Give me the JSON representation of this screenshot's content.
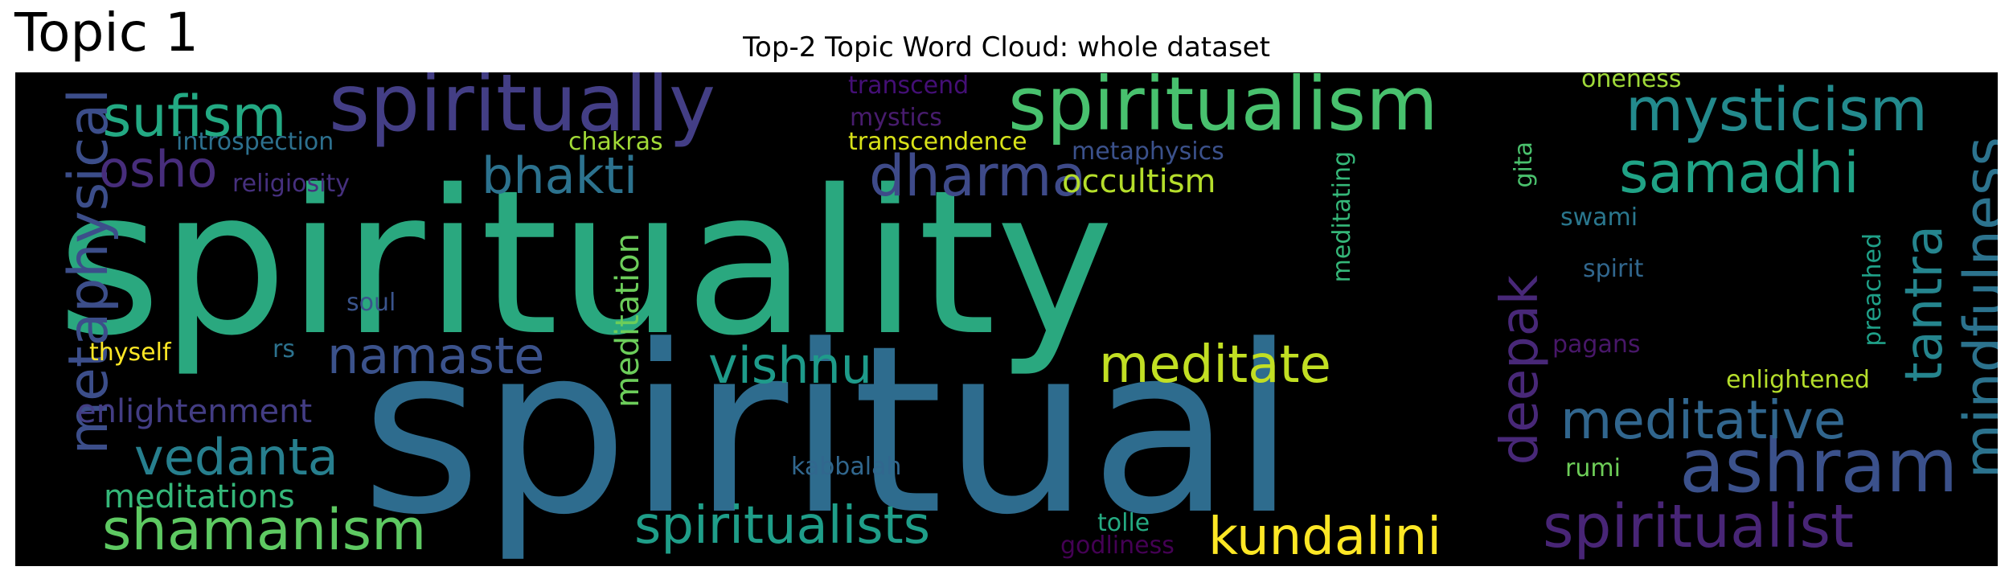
{
  "figure": {
    "topic_label": "Topic 1",
    "title": "Top-2 Topic Word Cloud: whole dataset",
    "background": "#000000"
  },
  "words": [
    {
      "text": "spirituality",
      "color": "#2aa87f"
    },
    {
      "text": "spiritual",
      "color": "#2e6c8e"
    },
    {
      "text": "spiritually",
      "color": "#433e85"
    },
    {
      "text": "spiritualism",
      "color": "#48c16e"
    },
    {
      "text": "mysticism",
      "color": "#238a8d"
    },
    {
      "text": "sufism",
      "color": "#23a983"
    },
    {
      "text": "metaphysical",
      "color": "#3c4e8a"
    },
    {
      "text": "osho",
      "color": "#472d7b"
    },
    {
      "text": "bhakti",
      "color": "#2c728e"
    },
    {
      "text": "dharma",
      "color": "#3e4a89"
    },
    {
      "text": "samadhi",
      "color": "#20a386"
    },
    {
      "text": "mindfulness",
      "color": "#2c738e"
    },
    {
      "text": "tantra",
      "color": "#25858e"
    },
    {
      "text": "ashram",
      "color": "#3b518b"
    },
    {
      "text": "spiritualist",
      "color": "#482576"
    },
    {
      "text": "meditative",
      "color": "#31668e"
    },
    {
      "text": "deepak",
      "color": "#482878"
    },
    {
      "text": "kundalini",
      "color": "#fde725"
    },
    {
      "text": "spiritualists",
      "color": "#1f9e89"
    },
    {
      "text": "shamanism",
      "color": "#5ec962"
    },
    {
      "text": "vedanta",
      "color": "#277f8e"
    },
    {
      "text": "namaste",
      "color": "#3b528b"
    },
    {
      "text": "vishnu",
      "color": "#1e9b8a"
    },
    {
      "text": "meditate",
      "color": "#c2df23"
    },
    {
      "text": "enlightenment",
      "color": "#433d84"
    },
    {
      "text": "meditations",
      "color": "#35b779"
    },
    {
      "text": "meditation",
      "color": "#6ccd5a"
    },
    {
      "text": "occultism",
      "color": "#b5de2b"
    },
    {
      "text": "introspection",
      "color": "#2d708e"
    },
    {
      "text": "religiosity",
      "color": "#46307e"
    },
    {
      "text": "chakras",
      "color": "#a2da37"
    },
    {
      "text": "transcend",
      "color": "#440f76"
    },
    {
      "text": "mystics",
      "color": "#481c6e"
    },
    {
      "text": "transcendence",
      "color": "#d8e219"
    },
    {
      "text": "metaphysics",
      "color": "#3b518b"
    },
    {
      "text": "oneness",
      "color": "#a0da39"
    },
    {
      "text": "gita",
      "color": "#4ac16d"
    },
    {
      "text": "meditating",
      "color": "#35b779"
    },
    {
      "text": "swami",
      "color": "#2a778e"
    },
    {
      "text": "preached",
      "color": "#1fa088"
    },
    {
      "text": "spirit",
      "color": "#31678e"
    },
    {
      "text": "enlightened",
      "color": "#b5de2b"
    },
    {
      "text": "pagans",
      "color": "#481769"
    },
    {
      "text": "rumi",
      "color": "#6ece58"
    },
    {
      "text": "kabbalah",
      "color": "#31678e"
    },
    {
      "text": "tolle",
      "color": "#25ab82"
    },
    {
      "text": "godliness",
      "color": "#440154"
    },
    {
      "text": "soul",
      "color": "#3a548c"
    },
    {
      "text": "thyself",
      "color": "#fde725"
    },
    {
      "text": "rs",
      "color": "#2c728e"
    }
  ]
}
